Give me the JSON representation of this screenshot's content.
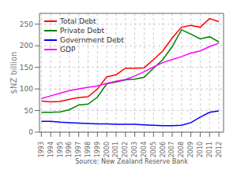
{
  "chart_data": {
    "type": "line",
    "ylabel": "$NZ billion",
    "annotation": "Source: New Zealand Reserve Bank",
    "x": [
      1993,
      1994,
      1995,
      1996,
      1997,
      1998,
      1999,
      2000,
      2001,
      2002,
      2003,
      2004,
      2005,
      2006,
      2007,
      2008,
      2009,
      2010,
      2011,
      2012
    ],
    "xlim": [
      1992.8,
      2012.5
    ],
    "xticks": [
      1993,
      1994,
      1995,
      1996,
      1997,
      1998,
      1999,
      2000,
      2001,
      2002,
      2003,
      2004,
      2005,
      2006,
      2007,
      2008,
      2009,
      2010,
      2011,
      2012
    ],
    "ylim": [
      0,
      275
    ],
    "yticks": [
      0,
      50,
      100,
      150,
      200,
      250
    ],
    "grid": true,
    "legend": "upper left",
    "series": [
      {
        "name": "Total Debt",
        "color": "red",
        "values": [
          72,
          70,
          71,
          76,
          80,
          82,
          100,
          128,
          133,
          148,
          148,
          149,
          168,
          188,
          218,
          243,
          247,
          243,
          263,
          256
        ]
      },
      {
        "name": "Private Debt",
        "color": "green",
        "values": [
          46,
          46,
          47,
          52,
          63,
          65,
          81,
          112,
          116,
          121,
          123,
          127,
          148,
          168,
          198,
          237,
          227,
          216,
          221,
          209
        ]
      },
      {
        "name": "Government Debt",
        "color": "blue",
        "values": [
          25,
          25,
          23,
          22,
          21,
          20,
          19,
          19,
          18,
          18,
          18,
          17,
          16,
          15,
          15,
          16,
          22,
          35,
          46,
          49
        ]
      },
      {
        "name": "GDP",
        "color": "magenta",
        "values": [
          78,
          84,
          90,
          96,
          100,
          104,
          107,
          113,
          118,
          122,
          130,
          140,
          151,
          161,
          168,
          175,
          183,
          188,
          198,
          206
        ]
      }
    ]
  }
}
